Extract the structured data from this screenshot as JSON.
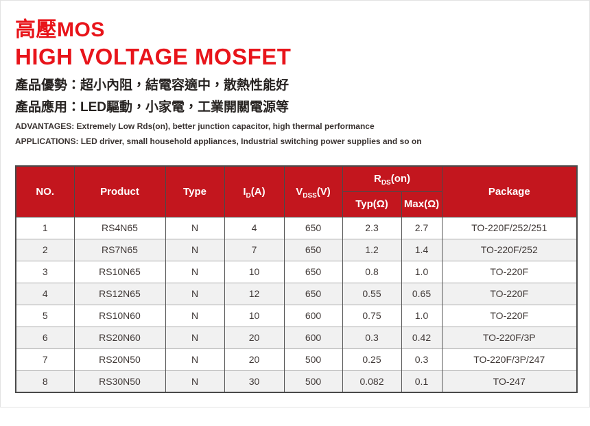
{
  "colors": {
    "title_red": "#e8141a",
    "table_header_red": "#c3161e",
    "row_alt_gray": "#f1f1f1",
    "grid_dark": "#4a4a4a",
    "body_text": "#3f3836"
  },
  "titles": {
    "zh": "高壓MOS",
    "en": "HIGH VOLTAGE MOSFET"
  },
  "intro": {
    "advantage_zh": "產品優勢：超小內阻，結電容適中，散熱性能好",
    "application_zh": "產品應用：LED驅動，小家電，工業開關電源等",
    "advantage_en": "ADVANTAGES: Extremely Low Rds(on), better junction capacitor, high thermal performance",
    "application_en": "APPLICATIONS: LED driver, small household appliances, Industrial switching power supplies and so on"
  },
  "table": {
    "headers": {
      "no": "NO.",
      "product": "Product",
      "type": "Type",
      "id": {
        "pre": "I",
        "sub": "D",
        "post": "(A)"
      },
      "vdss": {
        "pre": "V",
        "sub": "DSS",
        "post": "(V)"
      },
      "rds": {
        "pre": "R",
        "sub": "DS",
        "post": "(on)"
      },
      "typ": "Typ(Ω)",
      "max": "Max(Ω)",
      "package": "Package"
    },
    "rows": [
      [
        "1",
        "RS4N65",
        "N",
        "4",
        "650",
        "2.3",
        "2.7",
        "TO-220F/252/251"
      ],
      [
        "2",
        "RS7N65",
        "N",
        "7",
        "650",
        "1.2",
        "1.4",
        "TO-220F/252"
      ],
      [
        "3",
        "RS10N65",
        "N",
        "10",
        "650",
        "0.8",
        "1.0",
        "TO-220F"
      ],
      [
        "4",
        "RS12N65",
        "N",
        "12",
        "650",
        "0.55",
        "0.65",
        "TO-220F"
      ],
      [
        "5",
        "RS10N60",
        "N",
        "10",
        "600",
        "0.75",
        "1.0",
        "TO-220F"
      ],
      [
        "6",
        "RS20N60",
        "N",
        "20",
        "600",
        "0.3",
        "0.42",
        "TO-220F/3P"
      ],
      [
        "7",
        "RS20N50",
        "N",
        "20",
        "500",
        "0.25",
        "0.3",
        "TO-220F/3P/247"
      ],
      [
        "8",
        "RS30N50",
        "N",
        "30",
        "500",
        "0.082",
        "0.1",
        "TO-247"
      ]
    ]
  }
}
